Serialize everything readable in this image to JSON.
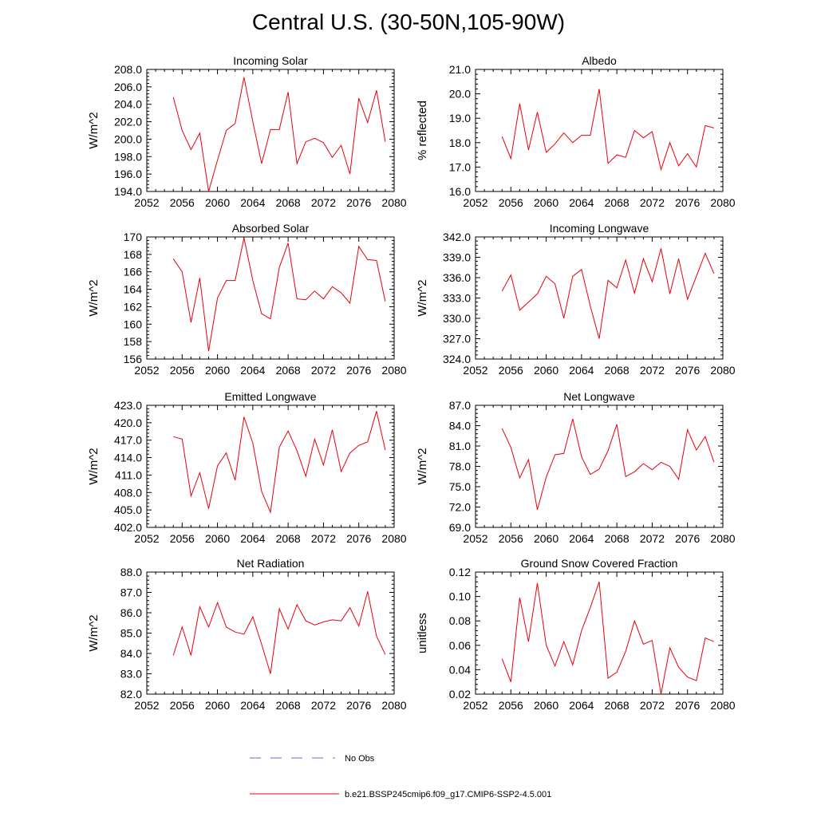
{
  "title": "Central U.S. (30-50N,105-90W)",
  "legend": {
    "obs_label": "No Obs",
    "obs_color": "#6a6acd",
    "model_label": "b.e21.BSSP245cmip6.f09_g17.CMIP6-SSP2-4.5.001",
    "model_color": "#e8000b"
  },
  "chart_data": [
    {
      "type": "line",
      "title": "Incoming Solar",
      "ylabel": "W/m^2",
      "xlabel": "",
      "xlim": [
        2052,
        2080
      ],
      "ylim": [
        194,
        208
      ],
      "xticks": [
        "2052",
        "2056",
        "2060",
        "2064",
        "2068",
        "2072",
        "2076",
        "2080"
      ],
      "yticks": [
        "194.0",
        "196.0",
        "198.0",
        "200.0",
        "202.0",
        "204.0",
        "206.0",
        "208.0"
      ],
      "x": [
        2055,
        2056,
        2057,
        2058,
        2059,
        2060,
        2061,
        2062,
        2063,
        2064,
        2065,
        2066,
        2067,
        2068,
        2069,
        2070,
        2071,
        2072,
        2073,
        2074,
        2075,
        2076,
        2077,
        2078,
        2079
      ],
      "series": [
        {
          "name": "b.e21.BSSP245cmip6.f09_g17.CMIP6-SSP2-4.5.001",
          "values": [
            204.8,
            201.0,
            198.8,
            200.7,
            194.0,
            197.6,
            201.0,
            201.8,
            207.1,
            202.0,
            197.2,
            201.1,
            201.1,
            205.4,
            197.2,
            199.7,
            200.1,
            199.6,
            197.9,
            199.3,
            196.0,
            204.7,
            201.9,
            205.6,
            199.7
          ]
        }
      ]
    },
    {
      "type": "line",
      "title": "Albedo",
      "ylabel": "% reflected",
      "xlabel": "",
      "xlim": [
        2052,
        2080
      ],
      "ylim": [
        16,
        21
      ],
      "xticks": [
        "2052",
        "2056",
        "2060",
        "2064",
        "2068",
        "2072",
        "2076",
        "2080"
      ],
      "yticks": [
        "16.0",
        "17.0",
        "18.0",
        "19.0",
        "20.0",
        "21.0"
      ],
      "x": [
        2055,
        2056,
        2057,
        2058,
        2059,
        2060,
        2061,
        2062,
        2063,
        2064,
        2065,
        2066,
        2067,
        2068,
        2069,
        2070,
        2071,
        2072,
        2073,
        2074,
        2075,
        2076,
        2077,
        2078,
        2079
      ],
      "series": [
        {
          "name": "b.e21.BSSP245cmip6.f09_g17.CMIP6-SSP2-4.5.001",
          "values": [
            18.25,
            17.35,
            19.6,
            17.7,
            19.25,
            17.6,
            17.95,
            18.4,
            18.0,
            18.3,
            18.3,
            20.2,
            17.15,
            17.5,
            17.4,
            18.5,
            18.2,
            18.45,
            16.9,
            18.0,
            17.05,
            17.55,
            17.0,
            18.7,
            18.6
          ]
        }
      ]
    },
    {
      "type": "line",
      "title": "Absorbed Solar",
      "ylabel": "W/m^2",
      "xlabel": "",
      "xlim": [
        2052,
        2080
      ],
      "ylim": [
        156,
        170
      ],
      "xticks": [
        "2052",
        "2056",
        "2060",
        "2064",
        "2068",
        "2072",
        "2076",
        "2080"
      ],
      "yticks": [
        "156",
        "158",
        "160",
        "162",
        "164",
        "166",
        "168",
        "170"
      ],
      "x": [
        2055,
        2056,
        2057,
        2058,
        2059,
        2060,
        2061,
        2062,
        2063,
        2064,
        2065,
        2066,
        2067,
        2068,
        2069,
        2070,
        2071,
        2072,
        2073,
        2074,
        2075,
        2076,
        2077,
        2078,
        2079
      ],
      "series": [
        {
          "name": "b.e21.BSSP245cmip6.f09_g17.CMIP6-SSP2-4.5.001",
          "values": [
            167.5,
            166.0,
            160.2,
            165.3,
            156.9,
            163.0,
            165.0,
            165.0,
            169.9,
            165.0,
            161.2,
            160.6,
            166.5,
            169.3,
            162.9,
            162.8,
            163.8,
            162.9,
            164.3,
            163.6,
            162.4,
            168.9,
            167.4,
            167.3,
            162.6
          ]
        }
      ]
    },
    {
      "type": "line",
      "title": "Incoming Longwave",
      "ylabel": "W/m^2",
      "xlabel": "",
      "xlim": [
        2052,
        2080
      ],
      "ylim": [
        324,
        342
      ],
      "xticks": [
        "2052",
        "2056",
        "2060",
        "2064",
        "2068",
        "2072",
        "2076",
        "2080"
      ],
      "yticks": [
        "324.0",
        "327.0",
        "330.0",
        "333.0",
        "336.0",
        "339.0",
        "342.0"
      ],
      "x": [
        2055,
        2056,
        2057,
        2058,
        2059,
        2060,
        2061,
        2062,
        2063,
        2064,
        2065,
        2066,
        2067,
        2068,
        2069,
        2070,
        2071,
        2072,
        2073,
        2074,
        2075,
        2076,
        2077,
        2078,
        2079
      ],
      "series": [
        {
          "name": "b.e21.BSSP245cmip6.f09_g17.CMIP6-SSP2-4.5.001",
          "values": [
            334.0,
            336.4,
            331.2,
            332.4,
            333.6,
            336.2,
            335.1,
            330.0,
            336.2,
            337.2,
            331.8,
            327.0,
            335.6,
            334.5,
            338.6,
            333.7,
            338.8,
            335.4,
            340.3,
            333.6,
            338.8,
            332.8,
            336.2,
            339.6,
            336.6
          ]
        }
      ]
    },
    {
      "type": "line",
      "title": "Emitted Longwave",
      "ylabel": "W/m^2",
      "xlabel": "",
      "xlim": [
        2052,
        2080
      ],
      "ylim": [
        402,
        423
      ],
      "xticks": [
        "2052",
        "2056",
        "2060",
        "2064",
        "2068",
        "2072",
        "2076",
        "2080"
      ],
      "yticks": [
        "402.0",
        "405.0",
        "408.0",
        "411.0",
        "414.0",
        "417.0",
        "420.0",
        "423.0"
      ],
      "x": [
        2055,
        2056,
        2057,
        2058,
        2059,
        2060,
        2061,
        2062,
        2063,
        2064,
        2065,
        2066,
        2067,
        2068,
        2069,
        2070,
        2071,
        2072,
        2073,
        2074,
        2075,
        2076,
        2077,
        2078,
        2079
      ],
      "series": [
        {
          "name": "b.e21.BSSP245cmip6.f09_g17.CMIP6-SSP2-4.5.001",
          "values": [
            417.6,
            417.2,
            407.4,
            411.4,
            405.2,
            412.6,
            414.8,
            410.1,
            421.0,
            416.5,
            408.2,
            404.6,
            415.8,
            418.6,
            415.2,
            410.8,
            417.2,
            412.7,
            418.8,
            411.6,
            414.8,
            416.1,
            416.7,
            422.0,
            415.3
          ]
        }
      ]
    },
    {
      "type": "line",
      "title": "Net Longwave",
      "ylabel": "W/m^2",
      "xlabel": "",
      "xlim": [
        2052,
        2080
      ],
      "ylim": [
        69,
        87
      ],
      "xticks": [
        "2052",
        "2056",
        "2060",
        "2064",
        "2068",
        "2072",
        "2076",
        "2080"
      ],
      "yticks": [
        "69.0",
        "72.0",
        "75.0",
        "78.0",
        "81.0",
        "84.0",
        "87.0"
      ],
      "x": [
        2055,
        2056,
        2057,
        2058,
        2059,
        2060,
        2061,
        2062,
        2063,
        2064,
        2065,
        2066,
        2067,
        2068,
        2069,
        2070,
        2071,
        2072,
        2073,
        2074,
        2075,
        2076,
        2077,
        2078,
        2079
      ],
      "series": [
        {
          "name": "b.e21.BSSP245cmip6.f09_g17.CMIP6-SSP2-4.5.001",
          "values": [
            83.6,
            80.8,
            76.3,
            79.0,
            71.6,
            76.4,
            79.7,
            79.9,
            85.0,
            79.4,
            76.8,
            77.6,
            80.3,
            84.2,
            76.5,
            77.2,
            78.4,
            77.5,
            78.6,
            78.0,
            76.1,
            83.4,
            80.4,
            82.4,
            78.6
          ]
        }
      ]
    },
    {
      "type": "line",
      "title": "Net Radiation",
      "ylabel": "W/m^2",
      "xlabel": "",
      "xlim": [
        2052,
        2080
      ],
      "ylim": [
        82,
        88
      ],
      "xticks": [
        "2052",
        "2056",
        "2060",
        "2064",
        "2068",
        "2072",
        "2076",
        "2080"
      ],
      "yticks": [
        "82.0",
        "83.0",
        "84.0",
        "85.0",
        "86.0",
        "87.0",
        "88.0"
      ],
      "x": [
        2055,
        2056,
        2057,
        2058,
        2059,
        2060,
        2061,
        2062,
        2063,
        2064,
        2065,
        2066,
        2067,
        2068,
        2069,
        2070,
        2071,
        2072,
        2073,
        2074,
        2075,
        2076,
        2077,
        2078,
        2079
      ],
      "series": [
        {
          "name": "b.e21.BSSP245cmip6.f09_g17.CMIP6-SSP2-4.5.001",
          "values": [
            83.9,
            85.3,
            83.9,
            86.3,
            85.3,
            86.5,
            85.3,
            85.05,
            84.95,
            85.8,
            84.45,
            83.0,
            86.2,
            85.2,
            86.4,
            85.6,
            85.4,
            85.55,
            85.65,
            85.6,
            86.25,
            85.35,
            87.05,
            84.85,
            83.95
          ]
        }
      ]
    },
    {
      "type": "line",
      "title": "Ground Snow Covered Fraction",
      "ylabel": "unitless",
      "xlabel": "",
      "xlim": [
        2052,
        2080
      ],
      "ylim": [
        0.02,
        0.12
      ],
      "xticks": [
        "2052",
        "2056",
        "2060",
        "2064",
        "2068",
        "2072",
        "2076",
        "2080"
      ],
      "yticks": [
        "0.02",
        "0.04",
        "0.06",
        "0.08",
        "0.10",
        "0.12"
      ],
      "x": [
        2055,
        2056,
        2057,
        2058,
        2059,
        2060,
        2061,
        2062,
        2063,
        2064,
        2065,
        2066,
        2067,
        2068,
        2069,
        2070,
        2071,
        2072,
        2073,
        2074,
        2075,
        2076,
        2077,
        2078,
        2079
      ],
      "series": [
        {
          "name": "b.e21.BSSP245cmip6.f09_g17.CMIP6-SSP2-4.5.001",
          "values": [
            0.049,
            0.03,
            0.099,
            0.063,
            0.111,
            0.06,
            0.043,
            0.063,
            0.044,
            0.072,
            0.091,
            0.112,
            0.033,
            0.038,
            0.055,
            0.08,
            0.061,
            0.064,
            0.02,
            0.058,
            0.042,
            0.034,
            0.031,
            0.066,
            0.063
          ]
        }
      ]
    }
  ]
}
